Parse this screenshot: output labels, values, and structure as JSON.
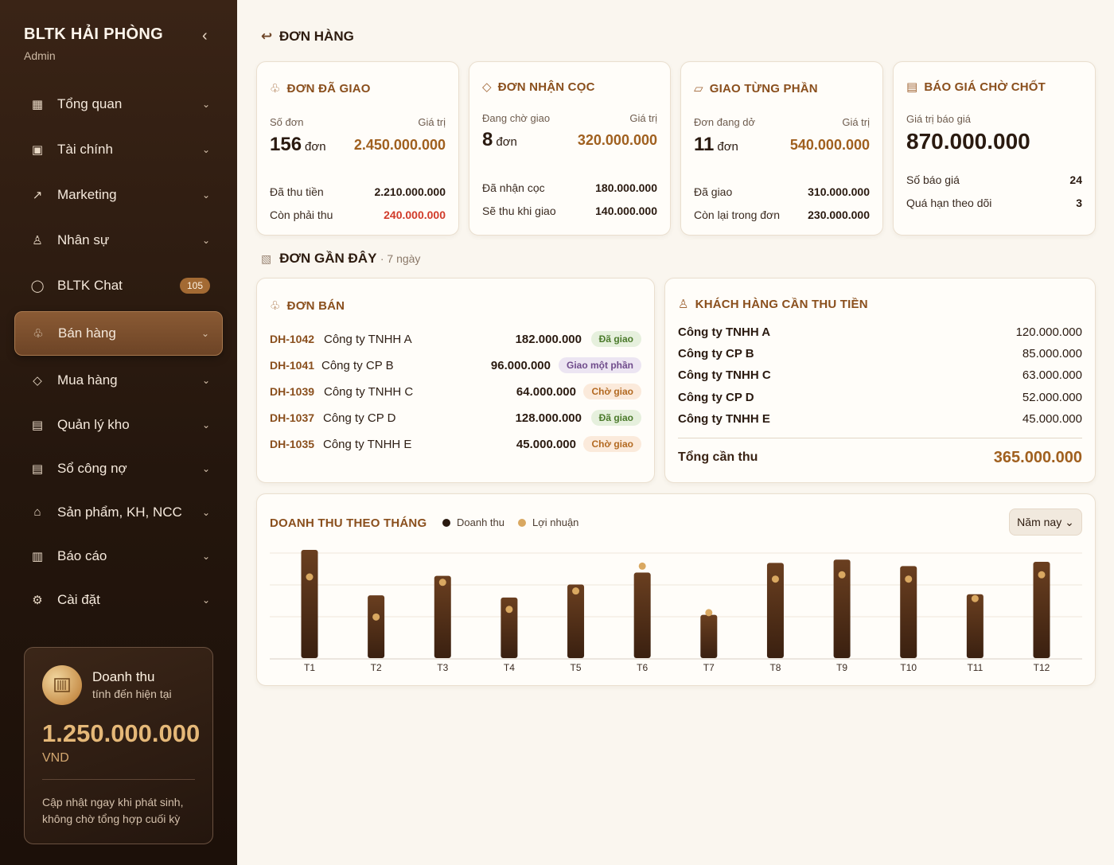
{
  "sidebar": {
    "brand": "BLTK HẢI PHÒNG",
    "role": "Admin",
    "collapse_icon": "‹",
    "items": [
      {
        "icon": "▦",
        "label": "Tổng quan",
        "chevron": "⌄"
      },
      {
        "icon": "▣",
        "label": "Tài chính",
        "chevron": "⌄"
      },
      {
        "icon": "↗",
        "label": "Marketing",
        "chevron": "⌄"
      },
      {
        "icon": "♙",
        "label": "Nhân sự",
        "chevron": "⌄"
      },
      {
        "icon": "◯",
        "label": "BLTK Chat",
        "badge": "105"
      },
      {
        "icon": "♧",
        "label": "Bán hàng",
        "chevron": "⌄"
      },
      {
        "icon": "◇",
        "label": "Mua hàng",
        "chevron": "⌄"
      },
      {
        "icon": "▤",
        "label": "Quản lý kho",
        "chevron": "⌄"
      },
      {
        "icon": "▤",
        "label": "Sổ công nợ",
        "chevron": "⌄"
      },
      {
        "icon": "⌂",
        "label": "Sản phẩm, KH, NCC",
        "chevron": "⌄"
      },
      {
        "icon": "▥",
        "label": "Báo cáo",
        "chevron": "⌄"
      },
      {
        "icon": "⚙",
        "label": "Cài đặt",
        "chevron": "⌄"
      }
    ],
    "revenue": {
      "title": "Doanh thu",
      "subtitle": "tính đến hiện tại",
      "amount": "1.250.000.000",
      "unit": "VND",
      "note": "Cập nhật ngay khi phát sinh, không chờ tổng hợp cuối kỳ"
    }
  },
  "page": {
    "back_icon": "↩",
    "title": "ĐƠN HÀNG"
  },
  "cards": {
    "delivered": {
      "icon": "♧",
      "title": "ĐƠN ĐÃ GIAO",
      "count_label": "Số đơn",
      "value_label": "Giá trị",
      "count": "156",
      "unit": "đơn",
      "value": "2.450.000.000",
      "rows": [
        {
          "label": "Đã thu tiền",
          "value": "2.210.000.000"
        },
        {
          "label": "Còn phải thu",
          "value": "240.000.000"
        }
      ]
    },
    "deposit": {
      "icon": "◇",
      "title": "ĐƠN NHẬN CỌC",
      "count_label": "Đang chờ giao",
      "value_label": "Giá trị",
      "count": "8",
      "unit": "đơn",
      "value": "320.000.000",
      "rows": [
        {
          "label": "Đã nhận cọc",
          "value": "180.000.000"
        },
        {
          "label": "Sẽ thu khi giao",
          "value": "140.000.000"
        }
      ]
    },
    "partial": {
      "icon": "▱",
      "title": "GIAO TỪNG PHẦN",
      "count_label": "Đơn đang dở",
      "value_label": "Giá trị",
      "count": "11",
      "unit": "đơn",
      "value": "540.000.000",
      "rows": [
        {
          "label": "Đã giao",
          "value": "310.000.000"
        },
        {
          "label": "Còn lại trong đơn",
          "value": "230.000.000"
        }
      ]
    },
    "quote": {
      "icon": "▤",
      "title": "BÁO GIÁ CHỜ CHỐT",
      "value_label": "Giá trị báo giá",
      "value": "870.000.000",
      "rows": [
        {
          "label": "Số báo giá",
          "value": "24"
        },
        {
          "label": "Quá hạn theo dõi",
          "value": "3"
        }
      ]
    }
  },
  "recent": {
    "icon": "▧",
    "title": "ĐƠN GẦN ĐÂY",
    "suffix": "· 7 ngày",
    "sales": {
      "icon": "♧",
      "title": "ĐƠN BÁN",
      "orders": [
        {
          "code": "DH-1042",
          "name": "Công ty TNHH A",
          "amount": "182.000.000",
          "status": "Đã giao",
          "tone": "green"
        },
        {
          "code": "DH-1041",
          "name": "Công ty CP B",
          "amount": "96.000.000",
          "status": "Giao một phần",
          "tone": "purple"
        },
        {
          "code": "DH-1039",
          "name": "Công ty TNHH C",
          "amount": "64.000.000",
          "status": "Chờ giao",
          "tone": "amber"
        },
        {
          "code": "DH-1037",
          "name": "Công ty CP D",
          "amount": "128.000.000",
          "status": "Đã giao",
          "tone": "green"
        },
        {
          "code": "DH-1035",
          "name": "Công ty TNHH E",
          "amount": "45.000.000",
          "status": "Chờ giao",
          "tone": "amber"
        }
      ]
    },
    "receivable": {
      "icon": "♙",
      "title": "KHÁCH HÀNG CẦN THU TIỀN",
      "customers": [
        {
          "name": "Công ty TNHH A",
          "amount": "120.000.000"
        },
        {
          "name": "Công ty CP B",
          "amount": "85.000.000"
        },
        {
          "name": "Công ty TNHH C",
          "amount": "63.000.000"
        },
        {
          "name": "Công ty CP D",
          "amount": "52.000.000"
        },
        {
          "name": "Công ty TNHH E",
          "amount": "45.000.000"
        }
      ],
      "total_label": "Tổng cần thu",
      "total": "365.000.000"
    }
  },
  "chart_panel": {
    "title": "DOANH THU THEO THÁNG",
    "period_button": "Năm nay ⌄"
  },
  "chart_data": {
    "type": "bar",
    "categories": [
      "T1",
      "T2",
      "T3",
      "T4",
      "T5",
      "T6",
      "T7",
      "T8",
      "T9",
      "T10",
      "T11",
      "T12"
    ],
    "series": [
      {
        "name": "Doanh thu",
        "values": [
          100,
          58,
          76,
          56,
          68,
          79,
          40,
          88,
          91,
          85,
          59,
          89
        ],
        "color": "#4a2a16"
      },
      {
        "name": "Lợi nhuận",
        "values": [
          75,
          38,
          70,
          45,
          62,
          85,
          42,
          73,
          77,
          73,
          55,
          77
        ],
        "color": "#d9a861"
      }
    ],
    "ylim": [
      0,
      100
    ],
    "grid": true,
    "legend": "top-left"
  }
}
